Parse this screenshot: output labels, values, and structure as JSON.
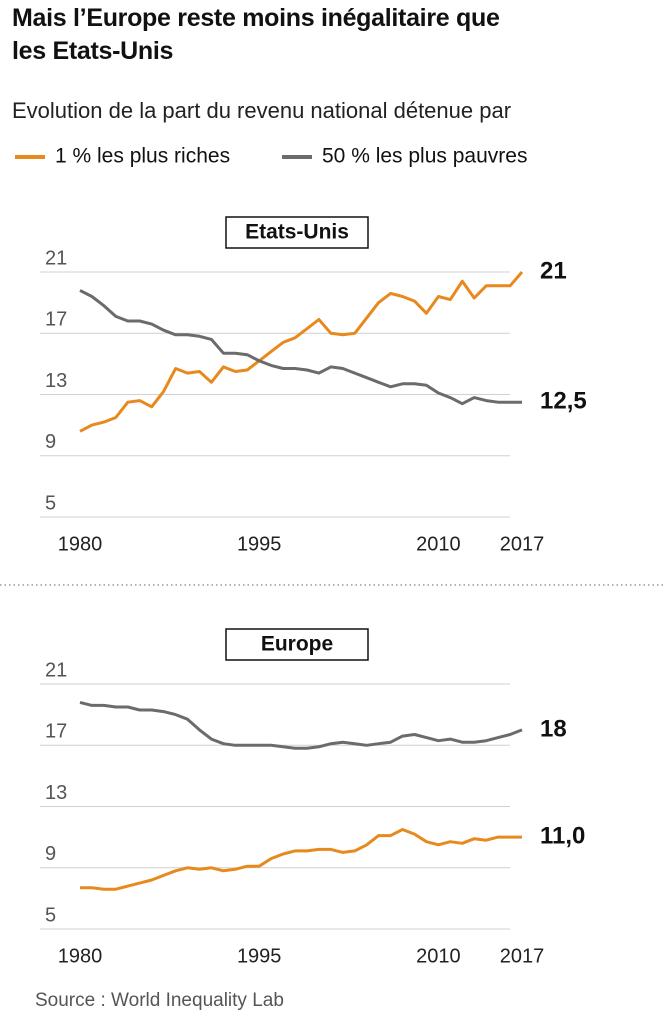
{
  "header": {
    "title": "Mais l’Europe reste moins inégalitaire que les Etats-Unis",
    "subtitle": "Evolution de la part du revenu national détenue par"
  },
  "source": "Source : World Inequality Lab",
  "chart_data": [
    {
      "type": "line",
      "title": "Etats-Unis",
      "x": [
        1980,
        1981,
        1982,
        1983,
        1984,
        1985,
        1986,
        1987,
        1988,
        1989,
        1990,
        1991,
        1992,
        1993,
        1994,
        1995,
        1996,
        1997,
        1998,
        1999,
        2000,
        2001,
        2002,
        2003,
        2004,
        2005,
        2006,
        2007,
        2008,
        2009,
        2010,
        2011,
        2012,
        2013,
        2014,
        2015,
        2016,
        2017
      ],
      "xlim": [
        1980,
        2017
      ],
      "xticks": [
        1980,
        1995,
        2010,
        2017
      ],
      "ylim": [
        5,
        21
      ],
      "yticks": [
        5,
        9,
        13,
        17,
        21
      ],
      "grid": true,
      "series": [
        {
          "name": "1 % les plus riches",
          "color": "#e8891e",
          "values": [
            10.6,
            11.0,
            11.2,
            11.5,
            12.5,
            12.6,
            12.2,
            13.2,
            14.7,
            14.4,
            14.5,
            13.8,
            14.8,
            14.5,
            14.6,
            15.2,
            15.8,
            16.4,
            16.7,
            17.3,
            17.9,
            17.0,
            16.9,
            17.0,
            18.0,
            19.0,
            19.6,
            19.4,
            19.1,
            18.3,
            19.4,
            19.2,
            20.4,
            19.3,
            20.1,
            20.1,
            20.1,
            21
          ],
          "value_labels": [
            null,
            null,
            null,
            null,
            null,
            null,
            null,
            null,
            null,
            null,
            null,
            null,
            null,
            null,
            null,
            null,
            null,
            null,
            null,
            null,
            null,
            null,
            null,
            null,
            null,
            null,
            null,
            null,
            null,
            null,
            null,
            null,
            null,
            null,
            null,
            null,
            null,
            "21"
          ]
        },
        {
          "name": "50 % les plus pauvres",
          "color": "#6b6b6b",
          "values": [
            19.8,
            19.4,
            18.8,
            18.1,
            17.8,
            17.8,
            17.6,
            17.2,
            16.9,
            16.9,
            16.8,
            16.6,
            15.7,
            15.7,
            15.6,
            15.2,
            14.9,
            14.7,
            14.7,
            14.6,
            14.4,
            14.8,
            14.7,
            14.4,
            14.1,
            13.8,
            13.5,
            13.7,
            13.7,
            13.6,
            13.1,
            12.8,
            12.4,
            12.8,
            12.6,
            12.5,
            12.5,
            12.5
          ],
          "value_labels": [
            null,
            null,
            null,
            null,
            null,
            null,
            null,
            null,
            null,
            null,
            null,
            null,
            null,
            null,
            null,
            null,
            null,
            null,
            null,
            null,
            null,
            null,
            null,
            null,
            null,
            null,
            null,
            null,
            null,
            null,
            null,
            null,
            null,
            null,
            null,
            null,
            null,
            "12,5"
          ]
        }
      ]
    },
    {
      "type": "line",
      "title": "Europe",
      "x": [
        1980,
        1981,
        1982,
        1983,
        1984,
        1985,
        1986,
        1987,
        1988,
        1989,
        1990,
        1991,
        1992,
        1993,
        1994,
        1995,
        1996,
        1997,
        1998,
        1999,
        2000,
        2001,
        2002,
        2003,
        2004,
        2005,
        2006,
        2007,
        2008,
        2009,
        2010,
        2011,
        2012,
        2013,
        2014,
        2015,
        2016,
        2017
      ],
      "xlim": [
        1980,
        2017
      ],
      "xticks": [
        1980,
        1995,
        2010,
        2017
      ],
      "ylim": [
        5,
        21
      ],
      "yticks": [
        5,
        9,
        13,
        17,
        21
      ],
      "grid": true,
      "series": [
        {
          "name": "1 % les plus riches",
          "color": "#e8891e",
          "values": [
            7.7,
            7.7,
            7.6,
            7.6,
            7.8,
            8.0,
            8.2,
            8.5,
            8.8,
            9.0,
            8.9,
            9.0,
            8.8,
            8.9,
            9.1,
            9.1,
            9.6,
            9.9,
            10.1,
            10.1,
            10.2,
            10.2,
            10.0,
            10.1,
            10.5,
            11.1,
            11.1,
            11.5,
            11.2,
            10.7,
            10.5,
            10.7,
            10.6,
            10.9,
            10.8,
            11.0,
            11.0,
            11.0
          ],
          "value_labels": [
            null,
            null,
            null,
            null,
            null,
            null,
            null,
            null,
            null,
            null,
            null,
            null,
            null,
            null,
            null,
            null,
            null,
            null,
            null,
            null,
            null,
            null,
            null,
            null,
            null,
            null,
            null,
            null,
            null,
            null,
            null,
            null,
            null,
            null,
            null,
            null,
            null,
            "11,0"
          ]
        },
        {
          "name": "50 % les plus pauvres",
          "color": "#6b6b6b",
          "values": [
            19.8,
            19.6,
            19.6,
            19.5,
            19.5,
            19.3,
            19.3,
            19.2,
            19.0,
            18.7,
            18.0,
            17.4,
            17.1,
            17.0,
            17.0,
            17.0,
            17.0,
            16.9,
            16.8,
            16.8,
            16.9,
            17.1,
            17.2,
            17.1,
            17.0,
            17.1,
            17.2,
            17.6,
            17.7,
            17.5,
            17.3,
            17.4,
            17.2,
            17.2,
            17.3,
            17.5,
            17.7,
            18.0
          ],
          "value_labels": [
            null,
            null,
            null,
            null,
            null,
            null,
            null,
            null,
            null,
            null,
            null,
            null,
            null,
            null,
            null,
            null,
            null,
            null,
            null,
            null,
            null,
            null,
            null,
            null,
            null,
            null,
            null,
            null,
            null,
            null,
            null,
            null,
            null,
            null,
            null,
            null,
            null,
            "18"
          ]
        }
      ]
    }
  ]
}
